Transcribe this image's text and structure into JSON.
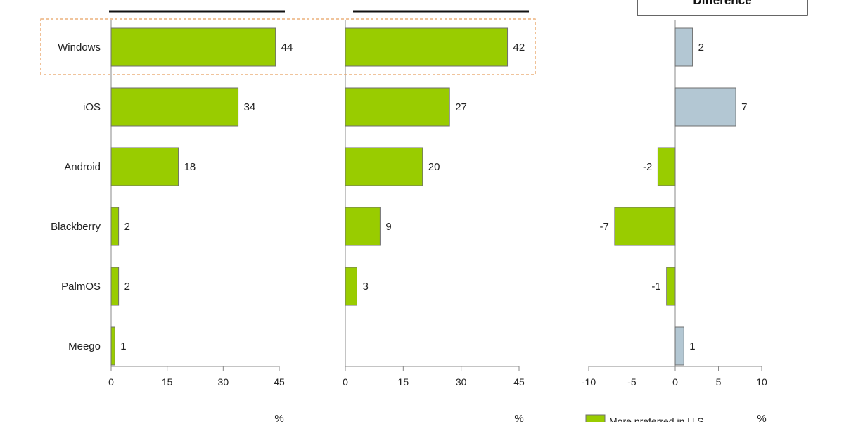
{
  "chart_data": [
    {
      "type": "bar",
      "orientation": "horizontal",
      "categories": [
        "Windows",
        "iOS",
        "Android",
        "Blackberry",
        "PalmOS",
        "Meego"
      ],
      "values": [
        44,
        34,
        18,
        2,
        2,
        1
      ],
      "title": "",
      "xlabel": "%",
      "xlim": [
        0,
        45
      ],
      "ticks": [
        "0",
        "15",
        "30",
        "45"
      ],
      "bar_color": "#99cc00",
      "highlighted_category": "Windows"
    },
    {
      "type": "bar",
      "orientation": "horizontal",
      "categories": [
        "Windows",
        "iOS",
        "Android",
        "Blackberry",
        "PalmOS",
        "Meego"
      ],
      "values": [
        42,
        27,
        20,
        9,
        3,
        0
      ],
      "value_labels": [
        "42",
        "27",
        "20",
        "9",
        "3",
        ""
      ],
      "title": "",
      "xlabel": "%",
      "xlim": [
        0,
        45
      ],
      "ticks": [
        "0",
        "15",
        "30",
        "45"
      ],
      "bar_color": "#99cc00"
    },
    {
      "type": "bar",
      "orientation": "horizontal",
      "categories": [
        "Windows",
        "iOS",
        "Android",
        "Blackberry",
        "PalmOS",
        "Meego"
      ],
      "values": [
        2,
        7,
        -2,
        -7,
        -1,
        1
      ],
      "title": "Difference",
      "xlabel": "%",
      "xlim": [
        -10,
        10
      ],
      "ticks": [
        "-10",
        "-5",
        "0",
        "5",
        "10"
      ],
      "positive_color": "#b3c7d3",
      "negative_color": "#99cc00",
      "legend": [
        {
          "label": "More preferred in U.S.",
          "color": "#99cc00"
        }
      ]
    }
  ]
}
